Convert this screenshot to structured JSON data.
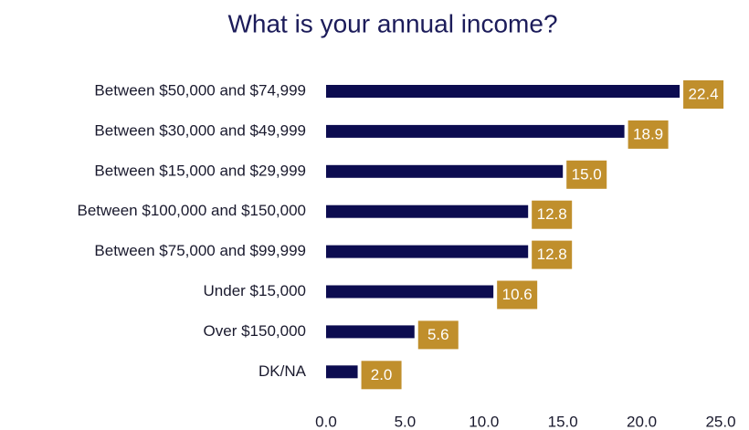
{
  "chart_data": {
    "type": "hbar",
    "title": "What is your annual income?",
    "categories": [
      "Between $50,000 and $74,999",
      "Between $30,000 and $49,999",
      "Between $15,000 and $29,999",
      "Between $100,000 and $150,000",
      "Between $75,000 and $99,999",
      "Under $15,000",
      "Over $150,000",
      "DK/NA"
    ],
    "values": [
      22.4,
      18.9,
      15,
      12.8,
      12.8,
      10.6,
      5.6,
      2
    ],
    "value_labels": [
      "22.4",
      "18.9",
      "15.0",
      "12.8",
      "12.8",
      "10.6",
      "5.6",
      "2.0"
    ],
    "color": "#0c0c50",
    "label_color": "#c08f2c",
    "xlim": [
      0,
      25
    ],
    "xticks": [
      {
        "value": 0,
        "label": "0.0"
      },
      {
        "value": 5,
        "label": "5.0"
      },
      {
        "value": 10,
        "label": "10.0"
      },
      {
        "value": 15,
        "label": "15.0"
      },
      {
        "value": 20,
        "label": "20.0"
      },
      {
        "value": 25,
        "label": "25.0"
      }
    ],
    "grid": false
  }
}
